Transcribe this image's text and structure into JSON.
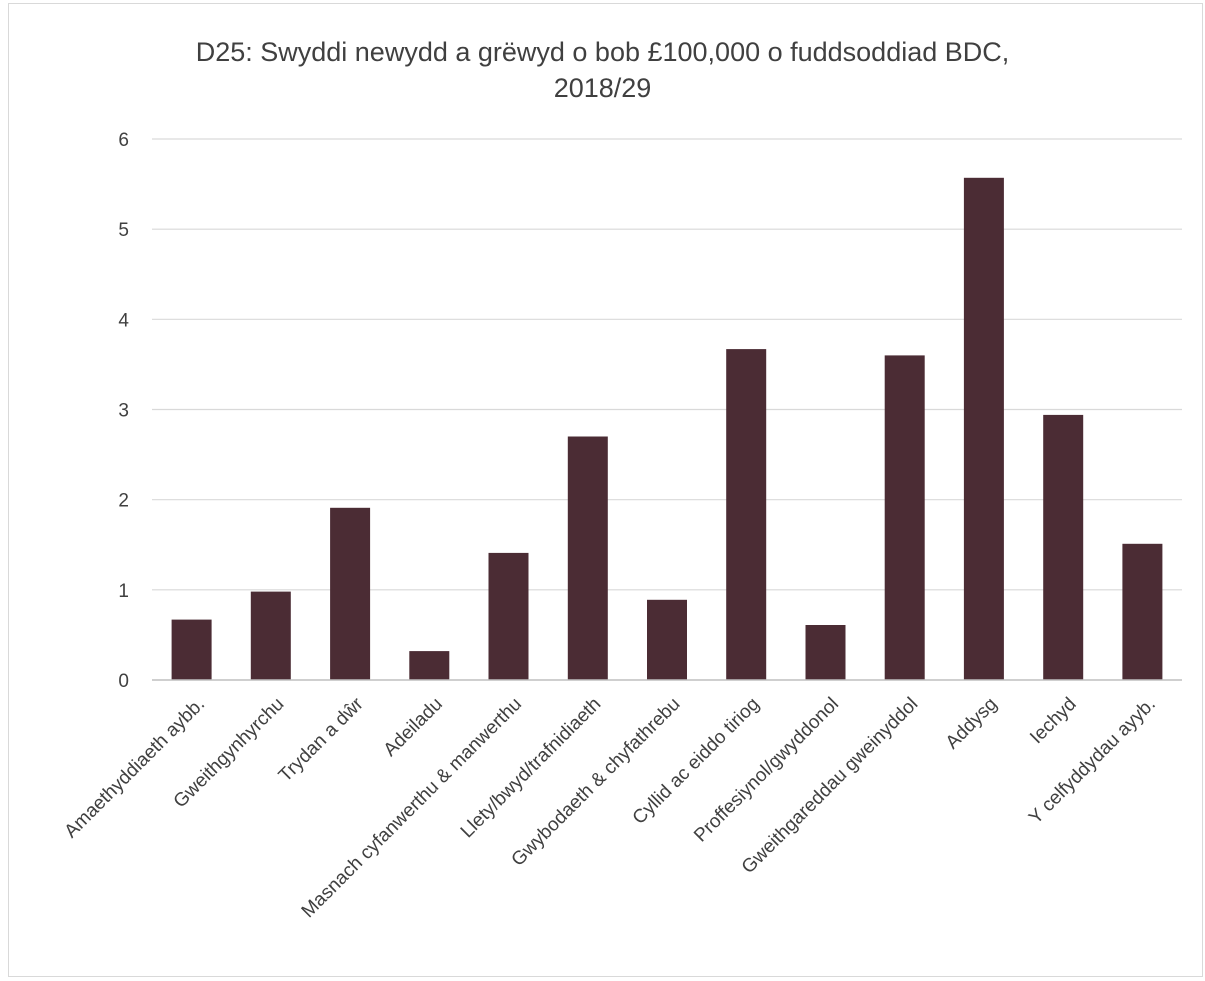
{
  "chart_data": {
    "type": "bar",
    "title_line1": "D25: Swyddi newydd a grëwyd o bob £100,000 o fuddsoddiad BDC,",
    "title_line2": "2018/29",
    "xlabel": "",
    "ylabel": "",
    "ylim": [
      0,
      6
    ],
    "yticks": [
      0,
      1,
      2,
      3,
      4,
      5,
      6
    ],
    "grid": true,
    "bar_color": "#4b2c34",
    "categories": [
      "Amaethyddiaeth aybb.",
      "Gweithgynhyrchu",
      "Trydan a dŵr",
      "Adeiladu",
      "Masnach cyfanwerthu & manwerthu",
      "Llety/bwyd/trafnidiaeth",
      "Gwybodaeth & chyfathrebu",
      "Cyllid ac eiddo tiriog",
      "Proffesiynol/gwyddonol",
      "Gweithgareddau gweinyddol",
      "Addysg",
      "Iechyd",
      "Y celfyddydau ayyb."
    ],
    "values": [
      0.67,
      0.98,
      1.91,
      0.32,
      1.41,
      2.7,
      0.89,
      3.67,
      0.61,
      3.6,
      5.57,
      2.94,
      1.51
    ]
  }
}
